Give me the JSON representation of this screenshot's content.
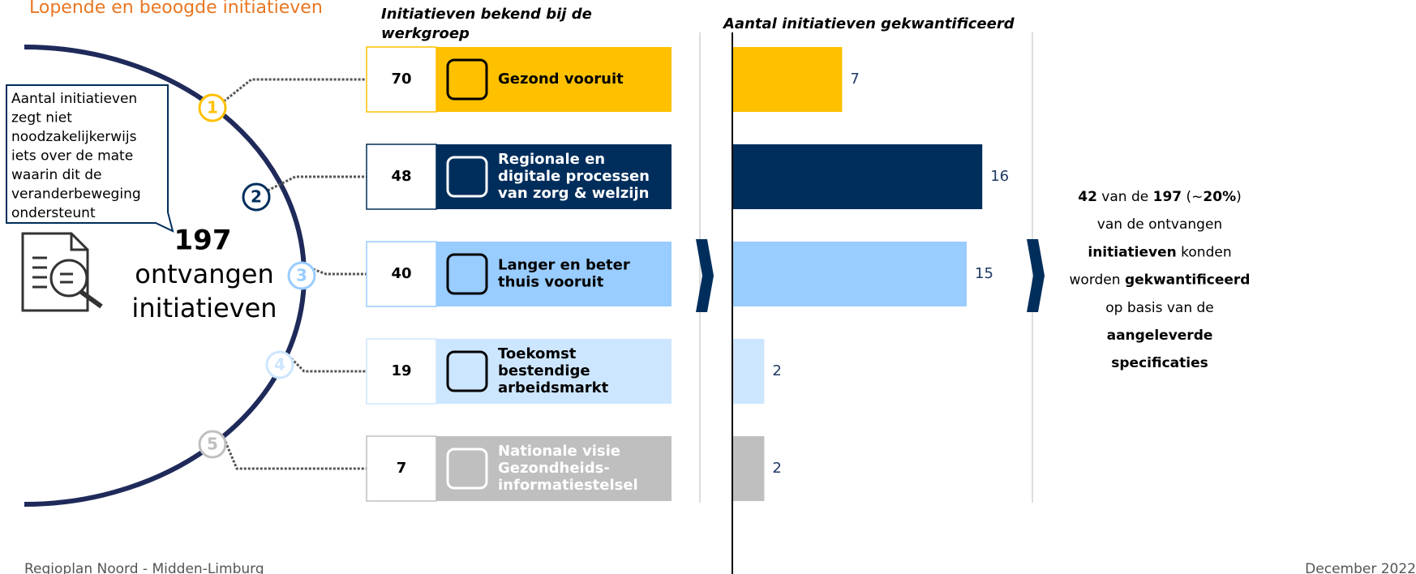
{
  "header": {
    "title": "Lopende en beoogde initiatieven",
    "col1": [
      "Initiatieven bekend bij de",
      "werkgroep"
    ],
    "col2": "Aantal initiatieven gekwantificeerd"
  },
  "callout": [
    "Aantal initiatieven",
    "zegt niet",
    "noodzakelijkerwijs",
    "iets over de mate",
    "waarin dit de",
    "veranderbeweging",
    "ondersteunt"
  ],
  "total": {
    "number": "197",
    "lines": [
      "ontvangen",
      "initiatieven"
    ]
  },
  "rows": [
    {
      "index": "1",
      "known": 70,
      "label": [
        "Gezond vooruit"
      ],
      "quantified": 7,
      "color": "#ffc000",
      "text_color": "#000000"
    },
    {
      "index": "2",
      "known": 48,
      "label": [
        "Regionale en",
        "digitale processen",
        "van zorg & welzijn"
      ],
      "quantified": 16,
      "color": "#002e5c",
      "text_color": "#ffffff"
    },
    {
      "index": "3",
      "known": 40,
      "label": [
        "Langer en beter",
        "thuis vooruit"
      ],
      "quantified": 15,
      "color": "#99ccff",
      "text_color": "#000000"
    },
    {
      "index": "4",
      "known": 19,
      "label": [
        "Toekomst",
        "bestendige",
        "arbeidsmarkt"
      ],
      "quantified": 2,
      "color": "#cde6ff",
      "text_color": "#000000"
    },
    {
      "index": "5",
      "known": 7,
      "label": [
        "Nationale visie",
        "Gezondheids-",
        "informatiestelsel"
      ],
      "quantified": 2,
      "color": "#bfbfbf",
      "text_color": "#ffffff"
    }
  ],
  "summary": [
    [
      "42",
      " van de ",
      "197",
      " (~",
      "20%",
      ")"
    ],
    [
      "van de ontvangen"
    ],
    [
      "initiatieven",
      " konden"
    ],
    [
      "worden ",
      "gekwantificeerd"
    ],
    [
      "op basis van de"
    ],
    [
      "aangeleverde"
    ],
    [
      "specificaties"
    ]
  ],
  "footer": {
    "left": "Regioplan Noord - Midden-Limburg",
    "right": "December 2022"
  }
}
